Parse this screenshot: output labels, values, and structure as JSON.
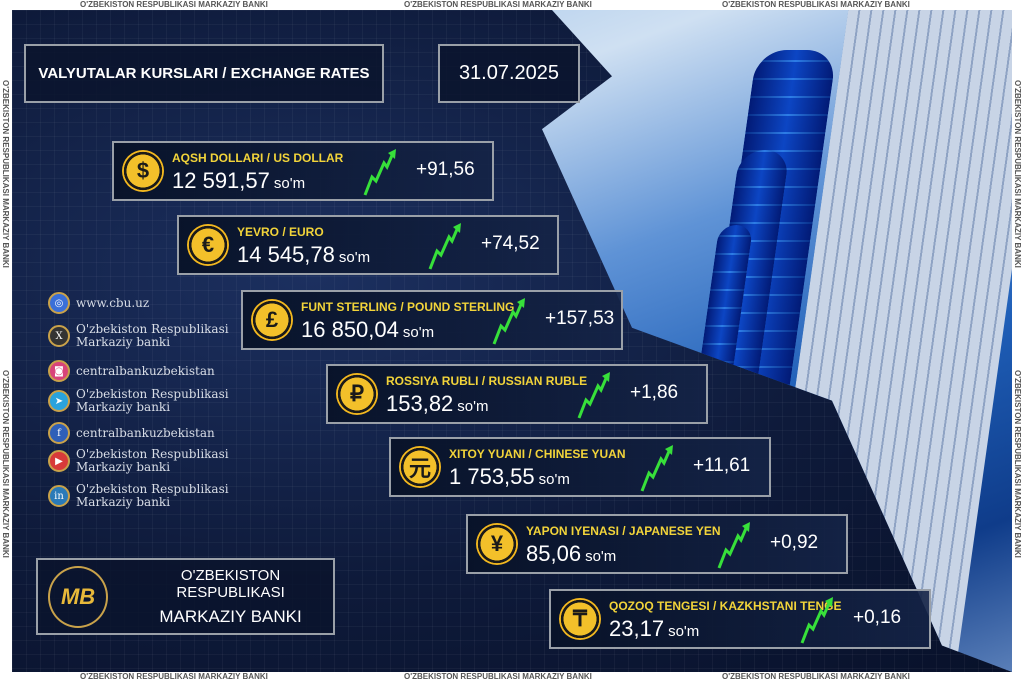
{
  "watermark": "O'ZBEKISTON RESPUBLIKASI MARKAZIY BANKI",
  "header": {
    "title": "VALYUTALAR KURSLARI / EXCHANGE RATES",
    "date": "31.07.2025"
  },
  "unit": "so'm",
  "currencies": [
    {
      "name": "AQSH DOLLARI / US DOLLAR",
      "symbol": "$",
      "rate": "12 591,57",
      "change": "+91,56",
      "icon": "dollar-coin-icon"
    },
    {
      "name": "YEVRO / EURO",
      "symbol": "€",
      "rate": "14 545,78",
      "change": "+74,52",
      "icon": "euro-coin-icon"
    },
    {
      "name": "FUNT STERLING / POUND STERLING",
      "symbol": "£",
      "rate": "16 850,04",
      "change": "+157,53",
      "icon": "pound-coin-icon"
    },
    {
      "name": "ROSSIYA RUBLI / RUSSIAN RUBLE",
      "symbol": "₽",
      "rate": "153,82",
      "change": "+1,86",
      "icon": "ruble-coin-icon"
    },
    {
      "name": "XITOY YUANI / CHINESE YUAN",
      "symbol": "元",
      "rate": "1 753,55",
      "change": "+11,61",
      "icon": "yuan-coin-icon"
    },
    {
      "name": "YAPON IYENASI / JAPANESE YEN",
      "symbol": "¥",
      "rate": "85,06",
      "change": "+0,92",
      "icon": "yen-coin-icon"
    },
    {
      "name": "QOZOQ TENGESI / KAZKHSTANI TENGE",
      "symbol": "₸",
      "rate": "23,17",
      "change": "+0,16",
      "icon": "tenge-coin-icon"
    }
  ],
  "social": [
    {
      "icon": "globe-icon",
      "glyph": "◎",
      "color": "#3a6fd8",
      "text": "www.cbu.uz"
    },
    {
      "icon": "x-icon",
      "glyph": "X",
      "color": "#333333",
      "text": "O'zbekiston Respublikasi Markaziy banki"
    },
    {
      "icon": "instagram-icon",
      "glyph": "◙",
      "color": "#d8437a",
      "text": "centralbankuzbekistan"
    },
    {
      "icon": "telegram-icon",
      "glyph": "➤",
      "color": "#2aa3dd",
      "text": "O'zbekiston Respublikasi Markaziy banki"
    },
    {
      "icon": "facebook-icon",
      "glyph": "f",
      "color": "#2f5fb8",
      "text": "centralbankuzbekistan"
    },
    {
      "icon": "youtube-icon",
      "glyph": "▶",
      "color": "#d83a3a",
      "text": "O'zbekiston Respublikasi Markaziy banki"
    },
    {
      "icon": "linkedin-icon",
      "glyph": "in",
      "color": "#2a7ab8",
      "text": "O'zbekiston Respublikasi Markaziy banki"
    }
  ],
  "logo": {
    "line1": "O'ZBEKISTON RESPUBLIKASI",
    "line2": "MARKAZIY BANKI",
    "mark": "MB",
    "ring": "O'ZBEKISTON RESPUBLIKASI MARKAZIY BANKI"
  },
  "colors": {
    "gold": "#f3c02a",
    "green": "#37e03a",
    "navy": "#0e1a3a"
  }
}
